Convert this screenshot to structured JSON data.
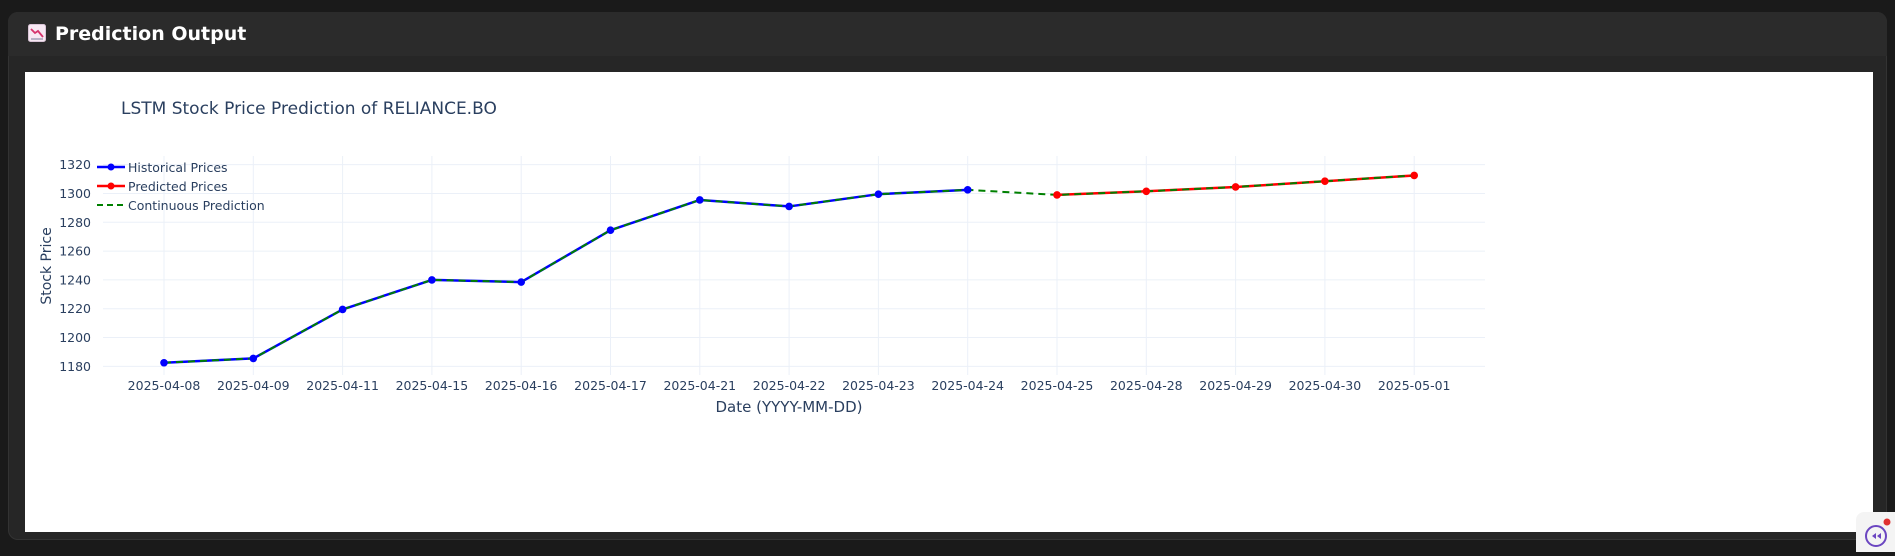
{
  "panel": {
    "title": "Prediction Output",
    "icon": "chart-decreasing-icon"
  },
  "chart_data": {
    "type": "line",
    "title": "LSTM Stock Price Prediction of RELIANCE.BO",
    "xlabel": "Date (YYYY-MM-DD)",
    "ylabel": "Stock Price",
    "x_axis_type": "category",
    "categories": [
      "2025-04-08",
      "2025-04-09",
      "2025-04-11",
      "2025-04-15",
      "2025-04-16",
      "2025-04-17",
      "2025-04-21",
      "2025-04-22",
      "2025-04-23",
      "2025-04-24",
      "2025-04-25",
      "2025-04-28",
      "2025-04-29",
      "2025-04-30",
      "2025-05-01"
    ],
    "ylim": [
      1174,
      1326
    ],
    "yticks": [
      1180,
      1200,
      1220,
      1240,
      1260,
      1280,
      1300,
      1320
    ],
    "grid": true,
    "legend_position": "top-left",
    "series": [
      {
        "name": "Historical Prices",
        "color": "#0000ff",
        "mode": "lines+markers",
        "x": [
          "2025-04-08",
          "2025-04-09",
          "2025-04-11",
          "2025-04-15",
          "2025-04-16",
          "2025-04-17",
          "2025-04-21",
          "2025-04-22",
          "2025-04-23",
          "2025-04-24"
        ],
        "values": [
          1182.5,
          1185.5,
          1219.5,
          1240.0,
          1238.5,
          1274.5,
          1295.5,
          1291.0,
          1299.5,
          1302.5
        ]
      },
      {
        "name": "Predicted Prices",
        "color": "#ff0000",
        "mode": "lines+markers",
        "x": [
          "2025-04-25",
          "2025-04-28",
          "2025-04-29",
          "2025-04-30",
          "2025-05-01"
        ],
        "values": [
          1299.0,
          1301.5,
          1304.5,
          1308.5,
          1312.5
        ]
      },
      {
        "name": "Continuous Prediction",
        "color": "#008000",
        "mode": "lines",
        "dash": "dash",
        "x": [
          "2025-04-08",
          "2025-04-09",
          "2025-04-11",
          "2025-04-15",
          "2025-04-16",
          "2025-04-17",
          "2025-04-21",
          "2025-04-22",
          "2025-04-23",
          "2025-04-24",
          "2025-04-25",
          "2025-04-28",
          "2025-04-29",
          "2025-04-30",
          "2025-05-01"
        ],
        "values": [
          1182.5,
          1185.5,
          1219.5,
          1240.0,
          1238.5,
          1274.5,
          1295.5,
          1291.0,
          1299.5,
          1302.5,
          1299.0,
          1301.5,
          1304.5,
          1308.5,
          1312.5
        ]
      }
    ]
  },
  "colors": {
    "background": "#1a1a1a",
    "panel": "#262626",
    "plot_background": "#ffffff",
    "grid": "#ebf0f8",
    "text": "#2a3f5f"
  },
  "corner_widget": {
    "icon": "chat-bubble-icon"
  }
}
